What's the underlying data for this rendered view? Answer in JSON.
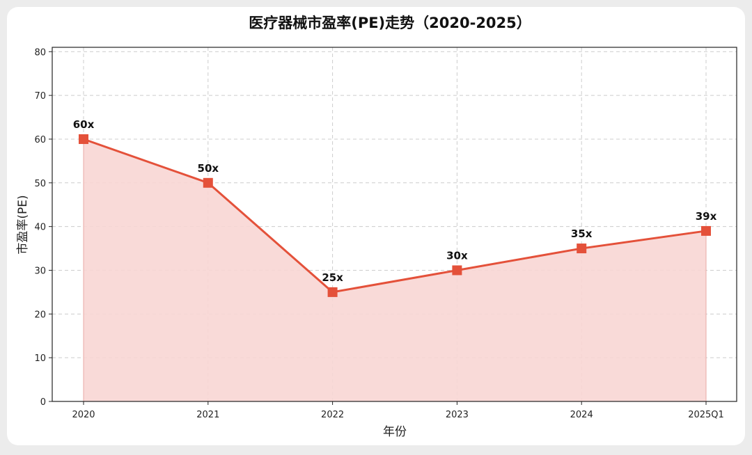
{
  "chart_data": {
    "type": "line",
    "title": "医疗器械市盈率(PE)走势（2020-2025）",
    "xlabel": "年份",
    "ylabel": "市盈率(PE)",
    "categories": [
      "2020",
      "2021",
      "2022",
      "2023",
      "2024",
      "2025Q1"
    ],
    "series": [
      {
        "values": [
          60,
          50,
          25,
          30,
          35,
          39
        ],
        "labels": [
          "60x",
          "50x",
          "25x",
          "30x",
          "35x",
          "39x"
        ]
      }
    ],
    "ylim": [
      0,
      81
    ],
    "yticks": [
      0,
      10,
      20,
      30,
      40,
      50,
      60,
      70,
      80
    ],
    "grid": true,
    "colors": {
      "line": "#e4513a",
      "fill": "#f8d6d4",
      "grid": "#cccccc"
    }
  }
}
